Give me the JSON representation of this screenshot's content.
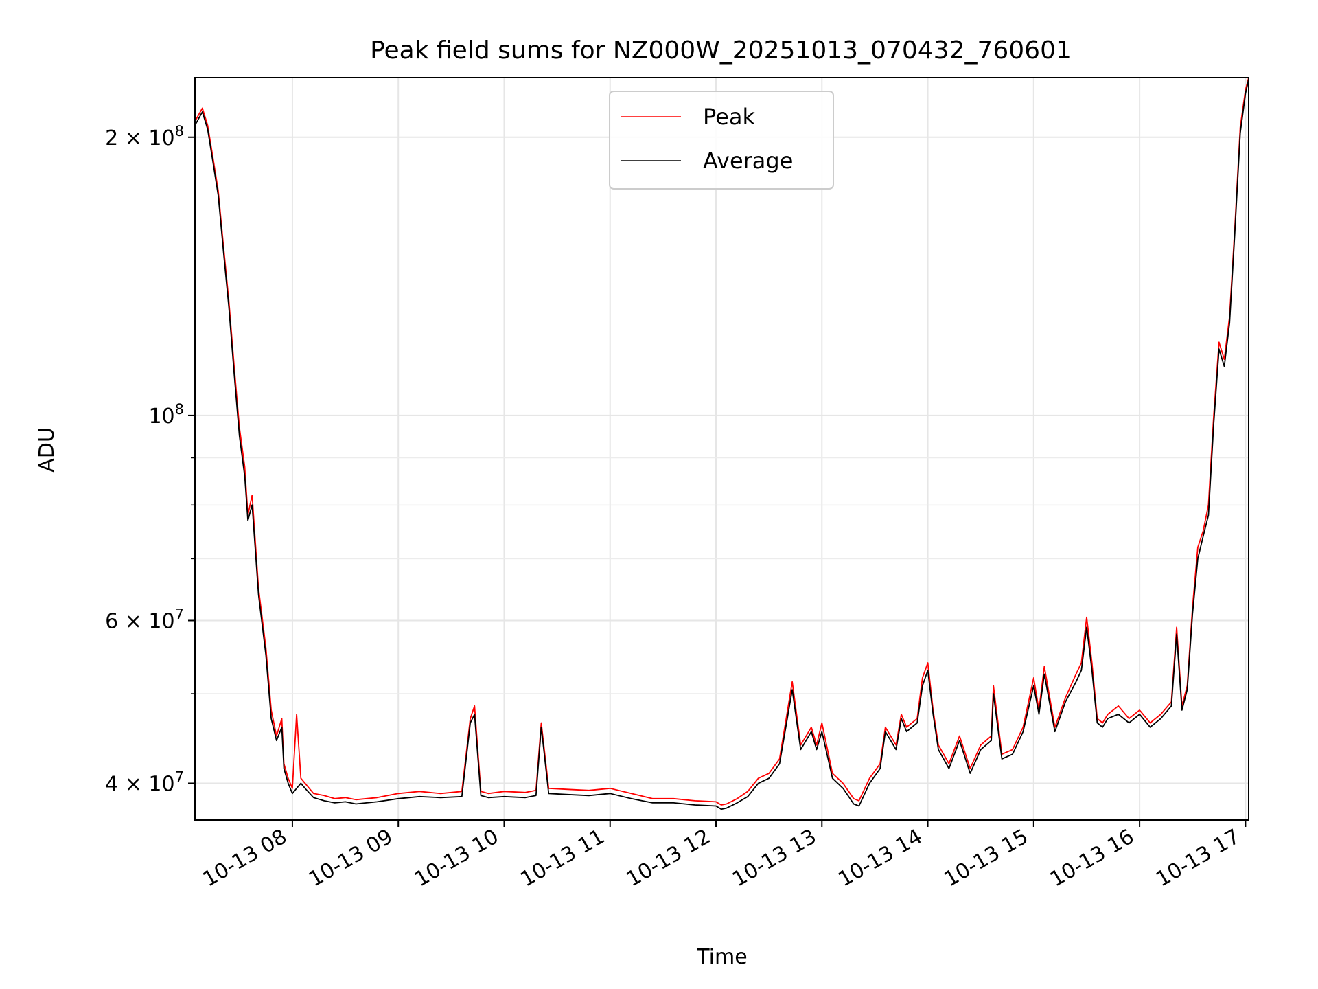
{
  "chart_data": {
    "type": "line",
    "title": "Peak field sums for NZ000W_20251013_070432_760601",
    "xlabel": "Time",
    "ylabel": "ADU",
    "yscale": "log",
    "xlim": [
      7.08,
      17.03
    ],
    "ylim": [
      36500000,
      232000000
    ],
    "grid": true,
    "legend_position": "upper-center",
    "x_ticks": [
      {
        "value": 8,
        "label": "10-13 08"
      },
      {
        "value": 9,
        "label": "10-13 09"
      },
      {
        "value": 10,
        "label": "10-13 10"
      },
      {
        "value": 11,
        "label": "10-13 11"
      },
      {
        "value": 12,
        "label": "10-13 12"
      },
      {
        "value": 13,
        "label": "10-13 13"
      },
      {
        "value": 14,
        "label": "10-13 14"
      },
      {
        "value": 15,
        "label": "10-13 15"
      },
      {
        "value": 16,
        "label": "10-13 16"
      },
      {
        "value": 17,
        "label": "10-13 17"
      }
    ],
    "y_major_ticks": [
      {
        "value": 40000000,
        "mantissa": "4",
        "exp": "7"
      },
      {
        "value": 60000000,
        "mantissa": "6",
        "exp": "7"
      },
      {
        "value": 100000000,
        "mantissa": "",
        "exp": "8"
      },
      {
        "value": 200000000,
        "mantissa": "2",
        "exp": "8"
      }
    ],
    "y_minor_ticks": [
      50000000,
      70000000,
      80000000,
      90000000,
      300000000
    ],
    "series": [
      {
        "name": "Peak",
        "color": "#ff0000",
        "x": [
          7.08,
          7.12,
          7.15,
          7.2,
          7.25,
          7.3,
          7.35,
          7.4,
          7.45,
          7.5,
          7.55,
          7.58,
          7.62,
          7.68,
          7.75,
          7.8,
          7.85,
          7.9,
          7.92,
          7.96,
          8.0,
          8.04,
          8.08,
          8.12,
          8.2,
          8.3,
          8.4,
          8.5,
          8.6,
          8.7,
          8.8,
          9.0,
          9.2,
          9.4,
          9.6,
          9.68,
          9.72,
          9.78,
          9.85,
          10.0,
          10.2,
          10.3,
          10.35,
          10.42,
          10.6,
          10.8,
          11.0,
          11.2,
          11.4,
          11.6,
          11.8,
          12.0,
          12.05,
          12.1,
          12.2,
          12.3,
          12.4,
          12.5,
          12.6,
          12.72,
          12.8,
          12.9,
          12.95,
          13.0,
          13.1,
          13.2,
          13.3,
          13.35,
          13.45,
          13.55,
          13.6,
          13.7,
          13.75,
          13.8,
          13.9,
          13.95,
          14.0,
          14.05,
          14.1,
          14.2,
          14.3,
          14.4,
          14.5,
          14.6,
          14.62,
          14.7,
          14.8,
          14.9,
          15.0,
          15.05,
          15.1,
          15.2,
          15.3,
          15.4,
          15.45,
          15.5,
          15.55,
          15.6,
          15.65,
          15.7,
          15.8,
          15.9,
          16.0,
          16.1,
          16.2,
          16.3,
          16.35,
          16.4,
          16.45,
          16.5,
          16.55,
          16.6,
          16.65,
          16.7,
          16.75,
          16.8,
          16.85,
          16.9,
          16.95,
          17.0,
          17.03
        ],
        "values": [
          208000000,
          212000000,
          215000000,
          206000000,
          190000000,
          175000000,
          152000000,
          133000000,
          113000000,
          97000000,
          88000000,
          78000000,
          82000000,
          65000000,
          56000000,
          48000000,
          45000000,
          47000000,
          42000000,
          40500000,
          39500000,
          47500000,
          40500000,
          40000000,
          39000000,
          38800000,
          38500000,
          38600000,
          38400000,
          38500000,
          38600000,
          39000000,
          39200000,
          39000000,
          39200000,
          47000000,
          48500000,
          39200000,
          39000000,
          39200000,
          39100000,
          39300000,
          46500000,
          39500000,
          39400000,
          39300000,
          39500000,
          39000000,
          38500000,
          38500000,
          38300000,
          38200000,
          37900000,
          38000000,
          38500000,
          39200000,
          40500000,
          41000000,
          42500000,
          51500000,
          44000000,
          46000000,
          44000000,
          46500000,
          41000000,
          40000000,
          38500000,
          38300000,
          40500000,
          42000000,
          46000000,
          44000000,
          47500000,
          46000000,
          47000000,
          52000000,
          54000000,
          48000000,
          44000000,
          42000000,
          45000000,
          41500000,
          44000000,
          45000000,
          51000000,
          43000000,
          43500000,
          46000000,
          52000000,
          48000000,
          53500000,
          46000000,
          49500000,
          52500000,
          54000000,
          60500000,
          54000000,
          47000000,
          46500000,
          47500000,
          48500000,
          47000000,
          48000000,
          46500000,
          47500000,
          49000000,
          59000000,
          48500000,
          51000000,
          62000000,
          72000000,
          75000000,
          80000000,
          100000000,
          120000000,
          115000000,
          128000000,
          160000000,
          205000000,
          225000000,
          232000000
        ]
      },
      {
        "name": "Average",
        "color": "#000000",
        "x": [
          7.08,
          7.12,
          7.15,
          7.2,
          7.25,
          7.3,
          7.35,
          7.4,
          7.45,
          7.5,
          7.55,
          7.58,
          7.62,
          7.68,
          7.75,
          7.8,
          7.85,
          7.9,
          7.92,
          7.96,
          8.0,
          8.04,
          8.08,
          8.12,
          8.2,
          8.3,
          8.4,
          8.5,
          8.6,
          8.7,
          8.8,
          9.0,
          9.2,
          9.4,
          9.6,
          9.68,
          9.72,
          9.78,
          9.85,
          10.0,
          10.2,
          10.3,
          10.35,
          10.42,
          10.6,
          10.8,
          11.0,
          11.2,
          11.4,
          11.6,
          11.8,
          12.0,
          12.05,
          12.1,
          12.2,
          12.3,
          12.4,
          12.5,
          12.6,
          12.72,
          12.8,
          12.9,
          12.95,
          13.0,
          13.1,
          13.2,
          13.3,
          13.35,
          13.45,
          13.55,
          13.6,
          13.7,
          13.75,
          13.8,
          13.9,
          13.95,
          14.0,
          14.05,
          14.1,
          14.2,
          14.3,
          14.4,
          14.5,
          14.6,
          14.62,
          14.7,
          14.8,
          14.9,
          15.0,
          15.05,
          15.1,
          15.2,
          15.3,
          15.4,
          15.45,
          15.5,
          15.55,
          15.6,
          15.65,
          15.7,
          15.8,
          15.9,
          16.0,
          16.1,
          16.2,
          16.3,
          16.35,
          16.4,
          16.45,
          16.5,
          16.55,
          16.6,
          16.65,
          16.7,
          16.75,
          16.8,
          16.85,
          16.9,
          16.95,
          17.0,
          17.03
        ],
        "values": [
          206000000,
          210000000,
          213000000,
          204000000,
          188000000,
          173000000,
          150000000,
          131000000,
          111000000,
          95000000,
          86000000,
          77000000,
          80000000,
          64000000,
          55000000,
          47000000,
          44500000,
          46000000,
          41500000,
          40000000,
          39000000,
          39500000,
          40000000,
          39500000,
          38600000,
          38300000,
          38100000,
          38200000,
          38000000,
          38100000,
          38200000,
          38500000,
          38700000,
          38600000,
          38700000,
          46500000,
          47500000,
          38800000,
          38600000,
          38700000,
          38600000,
          38800000,
          46000000,
          39000000,
          38900000,
          38800000,
          39000000,
          38500000,
          38100000,
          38100000,
          37900000,
          37800000,
          37500000,
          37600000,
          38100000,
          38700000,
          40000000,
          40500000,
          42000000,
          50500000,
          43500000,
          45500000,
          43500000,
          45500000,
          40500000,
          39500000,
          38000000,
          37800000,
          40000000,
          41500000,
          45500000,
          43500000,
          47000000,
          45500000,
          46500000,
          51000000,
          53000000,
          47500000,
          43500000,
          41500000,
          44500000,
          41000000,
          43500000,
          44500000,
          50000000,
          42500000,
          43000000,
          45500000,
          51000000,
          47500000,
          52500000,
          45500000,
          49000000,
          51500000,
          53000000,
          59000000,
          53000000,
          46500000,
          46000000,
          47000000,
          47500000,
          46500000,
          47500000,
          46000000,
          47000000,
          48500000,
          58000000,
          48000000,
          50500000,
          61000000,
          70000000,
          74000000,
          78000000,
          98000000,
          118000000,
          113000000,
          126000000,
          158000000,
          202000000,
          223000000,
          231000000
        ]
      }
    ]
  }
}
